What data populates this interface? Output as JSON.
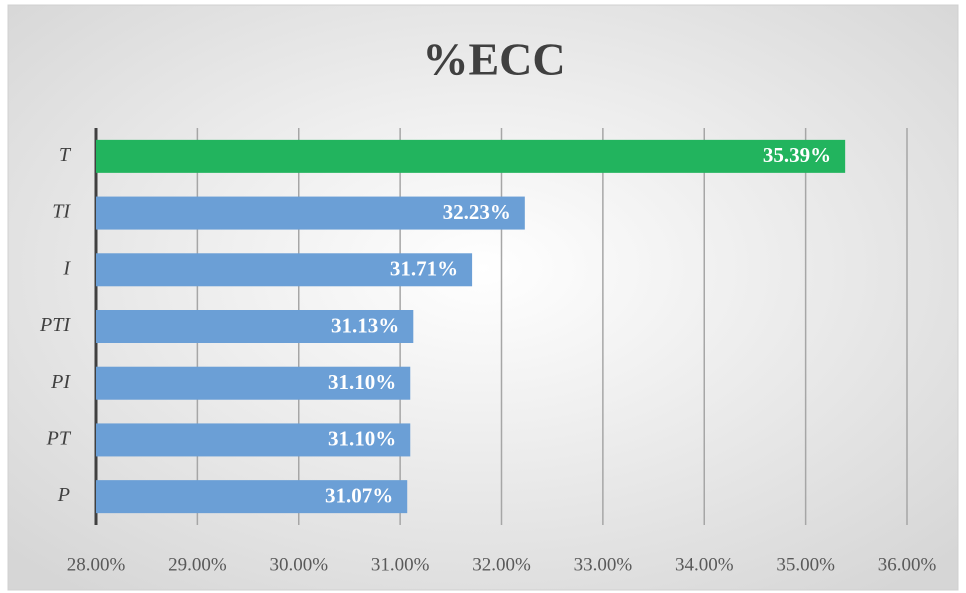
{
  "chart_data": {
    "type": "bar",
    "orientation": "horizontal",
    "title": "%ECC",
    "categories": [
      "T",
      "TI",
      "I",
      "PTI",
      "PI",
      "PT",
      "P"
    ],
    "values": [
      35.39,
      32.23,
      31.71,
      31.13,
      31.1,
      31.1,
      31.07
    ],
    "value_labels": [
      "35.39%",
      "32.23%",
      "31.71%",
      "31.13%",
      "31.10%",
      "31.10%",
      "31.07%"
    ],
    "colors": [
      "#22b45e",
      "#6b9fd6",
      "#6b9fd6",
      "#6b9fd6",
      "#6b9fd6",
      "#6b9fd6",
      "#6b9fd6"
    ],
    "xlim": [
      28,
      36
    ],
    "xticks": [
      {
        "value": 28,
        "label": "28.00%"
      },
      {
        "value": 29,
        "label": "29.00%"
      },
      {
        "value": 30,
        "label": "30.00%"
      },
      {
        "value": 31,
        "label": "31.00%"
      },
      {
        "value": 32,
        "label": "32.00%"
      },
      {
        "value": 33,
        "label": "33.00%"
      },
      {
        "value": 34,
        "label": "34.00%"
      },
      {
        "value": 35,
        "label": "35.00%"
      },
      {
        "value": 36,
        "label": "36.00%"
      }
    ],
    "grid": true
  }
}
